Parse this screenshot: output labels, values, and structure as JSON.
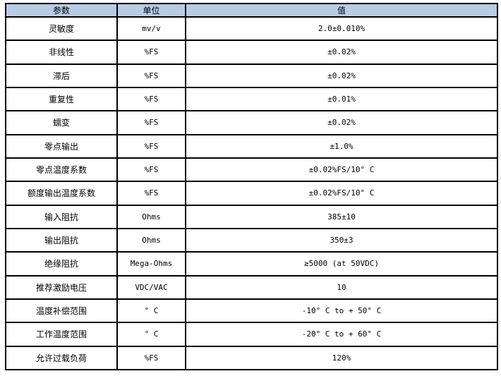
{
  "table": {
    "headers": [
      "参数",
      "单位",
      "值"
    ],
    "rows": [
      {
        "param": "灵敏度",
        "unit": "mv/v",
        "value": "2.0±0.010%"
      },
      {
        "param": "非线性",
        "unit": "%FS",
        "value": "±0.02%"
      },
      {
        "param": "滞后",
        "unit": "%FS",
        "value": "±0.02%"
      },
      {
        "param": "重复性",
        "unit": "%FS",
        "value": "±0.01%"
      },
      {
        "param": "蠕变",
        "unit": "%FS",
        "value": "±0.02%"
      },
      {
        "param": "零点输出",
        "unit": "%FS",
        "value": "±1.0%"
      },
      {
        "param": "零点温度系数",
        "unit": "%FS",
        "value": "±0.02%FS/10° C"
      },
      {
        "param": "额度输出温度系数",
        "unit": "%FS",
        "value": "±0.02%FS/10° C"
      },
      {
        "param": "输入阻抗",
        "unit": "Ohms",
        "value": "385±10"
      },
      {
        "param": "输出阻抗",
        "unit": "Ohms",
        "value": "350±3"
      },
      {
        "param": "绝缘阻抗",
        "unit": "Mega-Ohms",
        "value": "≥5000 (at 50VDC)"
      },
      {
        "param": "推荐激励电压",
        "unit": "VDC/VAC",
        "value": "10"
      },
      {
        "param": "温度补偿范围",
        "unit": "° C",
        "value": "-10° C to + 50° C"
      },
      {
        "param": "工作温度范围",
        "unit": "° C",
        "value": "-20° C to + 60° C"
      },
      {
        "param": "允许过载负荷",
        "unit": "%FS",
        "value": "120%"
      }
    ],
    "colors": {
      "header_bg": "#B8CCE4",
      "border": "#000000",
      "row_bg": "#FFFFFF"
    }
  },
  "chart_data": {
    "type": "table",
    "title": "",
    "columns": [
      "参数",
      "单位",
      "值"
    ],
    "rows": [
      [
        "灵敏度",
        "mv/v",
        "2.0±0.010%"
      ],
      [
        "非线性",
        "%FS",
        "±0.02%"
      ],
      [
        "滞后",
        "%FS",
        "±0.02%"
      ],
      [
        "重复性",
        "%FS",
        "±0.01%"
      ],
      [
        "蠕变",
        "%FS",
        "±0.02%"
      ],
      [
        "零点输出",
        "%FS",
        "±1.0%"
      ],
      [
        "零点温度系数",
        "%FS",
        "±0.02%FS/10° C"
      ],
      [
        "额度输出温度系数",
        "%FS",
        "±0.02%FS/10° C"
      ],
      [
        "输入阻抗",
        "Ohms",
        "385±10"
      ],
      [
        "输出阻抗",
        "Ohms",
        "350±3"
      ],
      [
        "绝缘阻抗",
        "Mega-Ohms",
        "≥5000 (at 50VDC)"
      ],
      [
        "推荐激励电压",
        "VDC/VAC",
        "10"
      ],
      [
        "温度补偿范围",
        "° C",
        "-10° C to + 50° C"
      ],
      [
        "工作温度范围",
        "° C",
        "-20° C to + 60° C"
      ],
      [
        "允许过载负荷",
        "%FS",
        "120%"
      ]
    ]
  }
}
